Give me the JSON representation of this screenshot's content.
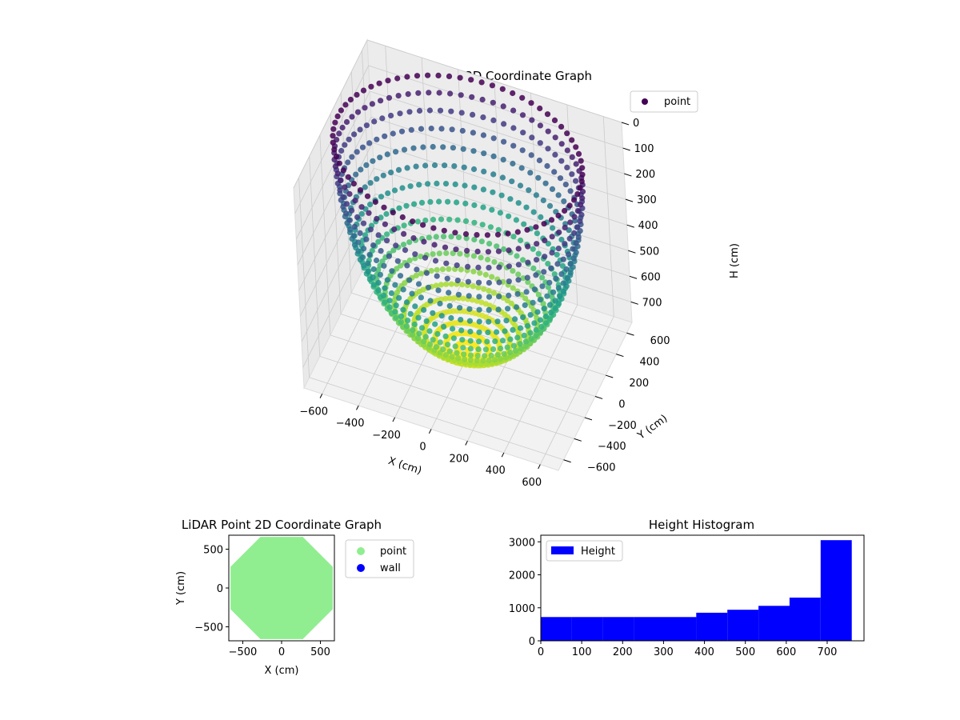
{
  "chart_data": [
    {
      "type": "scatter",
      "title": "LiDAR Point 3D Coordinate Graph",
      "xlabel": "X (cm)",
      "ylabel": "Y (cm)",
      "zlabel": "H (cm)",
      "xlim": [
        -700,
        700
      ],
      "ylim": [
        -700,
        700
      ],
      "zlim": [
        780,
        0
      ],
      "xticks": [
        -600,
        -400,
        -200,
        0,
        200,
        400,
        600
      ],
      "yticks": [
        -600,
        -400,
        -200,
        0,
        200,
        400,
        600
      ],
      "zticks": [
        0,
        100,
        200,
        300,
        400,
        500,
        600,
        700
      ],
      "shape": "hemisphere",
      "radius": 660,
      "depth": 760,
      "colormap": "viridis",
      "legend": [
        "point"
      ],
      "legend_position": "upper right",
      "grid": true
    },
    {
      "type": "scatter",
      "title": "LiDAR Point 2D Coordinate Graph",
      "xlabel": "X (cm)",
      "ylabel": "Y (cm)",
      "xlim": [
        -680,
        680
      ],
      "ylim": [
        -680,
        680
      ],
      "xticks": [
        -500,
        0,
        500
      ],
      "yticks": [
        -500,
        0,
        500
      ],
      "radius": 660,
      "series": [
        {
          "name": "point",
          "color": "#90ee90"
        },
        {
          "name": "wall",
          "color": "#0000ff"
        }
      ],
      "legend_position": "outside right"
    },
    {
      "type": "bar",
      "title": "Height Histogram",
      "xlabel": "",
      "ylabel": "",
      "xlim": [
        0,
        790
      ],
      "ylim": [
        0,
        3200
      ],
      "xticks": [
        0,
        100,
        200,
        300,
        400,
        500,
        600,
        700
      ],
      "yticks": [
        0,
        1000,
        2000,
        3000
      ],
      "bin_edges": [
        0,
        76,
        152,
        228,
        304,
        380,
        456,
        532,
        608,
        684,
        760
      ],
      "values": [
        720,
        720,
        720,
        720,
        720,
        850,
        940,
        1060,
        1310,
        3050
      ],
      "series": [
        {
          "name": "Height",
          "color": "#0000ff"
        }
      ],
      "legend_position": "upper left"
    }
  ]
}
